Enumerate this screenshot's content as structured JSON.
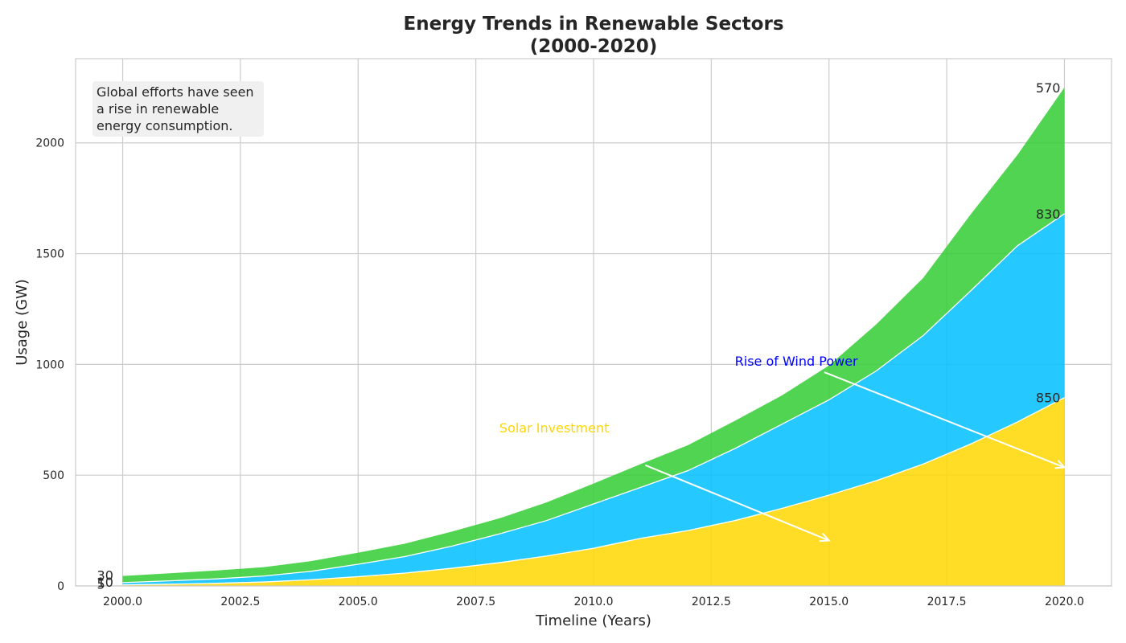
{
  "chart_data": {
    "type": "area",
    "stacked": true,
    "title_lines": [
      "Energy Trends in Renewable Sectors",
      "(2000-2020)"
    ],
    "xlabel": "Timeline (Years)",
    "ylabel": "Usage (GW)",
    "xlim": [
      1999,
      2021
    ],
    "ylim": [
      0,
      2380
    ],
    "xticks": [
      2000.0,
      2002.5,
      2005.0,
      2007.5,
      2010.0,
      2012.5,
      2015.0,
      2017.5,
      2020.0
    ],
    "xtick_labels": [
      "2000.0",
      "2002.5",
      "2005.0",
      "2007.5",
      "2010.0",
      "2012.5",
      "2015.0",
      "2017.5",
      "2020.0"
    ],
    "yticks": [
      0,
      500,
      1000,
      1500,
      2000
    ],
    "ytick_labels": [
      "0",
      "500",
      "1000",
      "1500",
      "2000"
    ],
    "grid": true,
    "x": [
      2000,
      2001,
      2002,
      2003,
      2004,
      2005,
      2006,
      2007,
      2008,
      2009,
      2010,
      2011,
      2012,
      2013,
      2014,
      2015,
      2016,
      2017,
      2018,
      2019,
      2020
    ],
    "series": [
      {
        "color": "#FFD700",
        "values": [
          5,
          8,
          12,
          18,
          28,
          42,
          58,
          80,
          105,
          135,
          170,
          215,
          250,
          295,
          350,
          410,
          475,
          550,
          640,
          740,
          850
        ]
      },
      {
        "color": "#00BFFF",
        "values": [
          10,
          15,
          20,
          27,
          38,
          56,
          75,
          100,
          130,
          160,
          200,
          230,
          270,
          325,
          380,
          430,
          495,
          580,
          690,
          795,
          830
        ]
      },
      {
        "color": "#32CD32",
        "values": [
          30,
          34,
          38,
          40,
          46,
          52,
          58,
          66,
          70,
          82,
          92,
          105,
          115,
          125,
          130,
          155,
          210,
          260,
          345,
          410,
          570
        ]
      }
    ],
    "start_labels": [
      "5",
      "10",
      "30"
    ],
    "end_labels": [
      "850",
      "830",
      "570"
    ],
    "annotations": [
      {
        "text": "Solar Investment",
        "color": "#FFD700",
        "text_x": 2008,
        "text_y": 715,
        "from_x": 2011.1,
        "from_y": 545,
        "to_x": 2015,
        "to_y": 205
      },
      {
        "text": "Rise of Wind Power",
        "color": "#0000FF",
        "text_x": 2013,
        "text_y": 1015,
        "from_x": 2014.9,
        "from_y": 965,
        "to_x": 2020,
        "to_y": 535
      }
    ],
    "note_lines": [
      "Global efforts have seen",
      "a rise in renewable",
      "energy consumption."
    ]
  }
}
